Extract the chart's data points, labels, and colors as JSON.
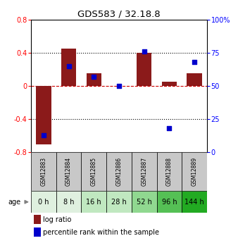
{
  "title": "GDS583 / 32.18.8",
  "samples": [
    "GSM12883",
    "GSM12884",
    "GSM12885",
    "GSM12886",
    "GSM12887",
    "GSM12888",
    "GSM12889"
  ],
  "ages": [
    "0 h",
    "8 h",
    "16 h",
    "28 h",
    "52 h",
    "96 h",
    "144 h"
  ],
  "log_ratio": [
    -0.7,
    0.45,
    0.15,
    0.0,
    0.4,
    0.05,
    0.15
  ],
  "percentile": [
    13,
    65,
    57,
    50,
    76,
    18,
    68
  ],
  "ylim_left": [
    -0.8,
    0.8
  ],
  "ylim_right": [
    0,
    100
  ],
  "bar_color": "#8B1A1A",
  "dot_color": "#0000CC",
  "dotted_line_color": "#000000",
  "zero_line_color": "#CC0000",
  "age_bg_colors": [
    "#dff0df",
    "#dff0df",
    "#c0e8c0",
    "#c0e8c0",
    "#90d890",
    "#55c055",
    "#22aa22"
  ],
  "sample_bg_color": "#c8c8c8",
  "legend_items": [
    "log ratio",
    "percentile rank within the sample"
  ],
  "left_yticks": [
    -0.8,
    -0.4,
    0.0,
    0.4,
    0.8
  ],
  "right_yticks": [
    0,
    25,
    50,
    75,
    100
  ]
}
